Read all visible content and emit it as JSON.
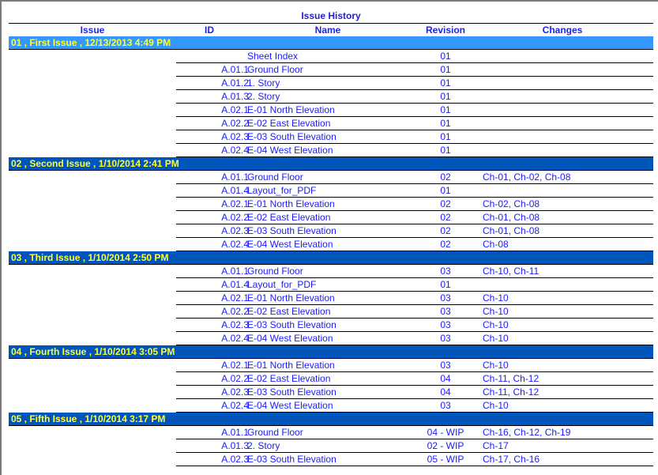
{
  "title": "Issue History",
  "headers": {
    "issue": "Issue",
    "id": "ID",
    "name": "Name",
    "revision": "Revision",
    "changes": "Changes"
  },
  "colors": {
    "first_band": "#3399ff",
    "band": "#0055bb",
    "band_text": "#ffff33",
    "text": "#1a1aff"
  },
  "groups": [
    {
      "label": "01 , First Issue , 12/13/2013 4:49 PM",
      "rows": [
        {
          "id": "",
          "name": "Sheet Index",
          "rev": "01",
          "changes": ""
        },
        {
          "id": "A.01.1",
          "name": "Ground Floor",
          "rev": "01",
          "changes": ""
        },
        {
          "id": "A.01.2",
          "name": "1. Story",
          "rev": "01",
          "changes": ""
        },
        {
          "id": "A.01.3",
          "name": "2. Story",
          "rev": "01",
          "changes": ""
        },
        {
          "id": "A.02.1",
          "name": "E-01 North Elevation",
          "rev": "01",
          "changes": ""
        },
        {
          "id": "A.02.2",
          "name": "E-02 East Elevation",
          "rev": "01",
          "changes": ""
        },
        {
          "id": "A.02.3",
          "name": "E-03 South Elevation",
          "rev": "01",
          "changes": ""
        },
        {
          "id": "A.02.4",
          "name": "E-04 West Elevation",
          "rev": "01",
          "changes": ""
        }
      ]
    },
    {
      "label": "02 , Second Issue , 1/10/2014 2:41 PM",
      "rows": [
        {
          "id": "A.01.1",
          "name": "Ground Floor",
          "rev": "02",
          "changes": "Ch-01, Ch-02, Ch-08"
        },
        {
          "id": "A.01.4",
          "name": "Layout_for_PDF",
          "rev": "01",
          "changes": ""
        },
        {
          "id": "A.02.1",
          "name": "E-01 North Elevation",
          "rev": "02",
          "changes": "Ch-02, Ch-08"
        },
        {
          "id": "A.02.2",
          "name": "E-02 East Elevation",
          "rev": "02",
          "changes": "Ch-01, Ch-08"
        },
        {
          "id": "A.02.3",
          "name": "E-03 South Elevation",
          "rev": "02",
          "changes": "Ch-01, Ch-08"
        },
        {
          "id": "A.02.4",
          "name": "E-04 West Elevation",
          "rev": "02",
          "changes": "Ch-08"
        }
      ]
    },
    {
      "label": "03 , Third Issue , 1/10/2014 2:50 PM",
      "rows": [
        {
          "id": "A.01.1",
          "name": "Ground Floor",
          "rev": "03",
          "changes": "Ch-10, Ch-11"
        },
        {
          "id": "A.01.4",
          "name": "Layout_for_PDF",
          "rev": "01",
          "changes": ""
        },
        {
          "id": "A.02.1",
          "name": "E-01 North Elevation",
          "rev": "03",
          "changes": "Ch-10"
        },
        {
          "id": "A.02.2",
          "name": "E-02 East Elevation",
          "rev": "03",
          "changes": "Ch-10"
        },
        {
          "id": "A.02.3",
          "name": "E-03 South Elevation",
          "rev": "03",
          "changes": "Ch-10"
        },
        {
          "id": "A.02.4",
          "name": "E-04 West Elevation",
          "rev": "03",
          "changes": "Ch-10"
        }
      ]
    },
    {
      "label": "04 , Fourth Issue , 1/10/2014 3:05 PM",
      "rows": [
        {
          "id": "A.02.1",
          "name": "E-01 North Elevation",
          "rev": "03",
          "changes": "Ch-10"
        },
        {
          "id": "A.02.2",
          "name": "E-02 East Elevation",
          "rev": "04",
          "changes": "Ch-11, Ch-12"
        },
        {
          "id": "A.02.3",
          "name": "E-03 South Elevation",
          "rev": "04",
          "changes": "Ch-11, Ch-12"
        },
        {
          "id": "A.02.4",
          "name": "E-04 West Elevation",
          "rev": "03",
          "changes": "Ch-10"
        }
      ]
    },
    {
      "label": "05 , Fifth Issue , 1/10/2014 3:17 PM",
      "rows": [
        {
          "id": "A.01.1",
          "name": "Ground Floor",
          "rev": "04 - WIP",
          "changes": "Ch-16, Ch-12, Ch-19"
        },
        {
          "id": "A.01.3",
          "name": "2. Story",
          "rev": "02 - WIP",
          "changes": "Ch-17"
        },
        {
          "id": "A.02.3",
          "name": "E-03 South Elevation",
          "rev": "05 - WIP",
          "changes": "Ch-17, Ch-16"
        }
      ]
    }
  ]
}
